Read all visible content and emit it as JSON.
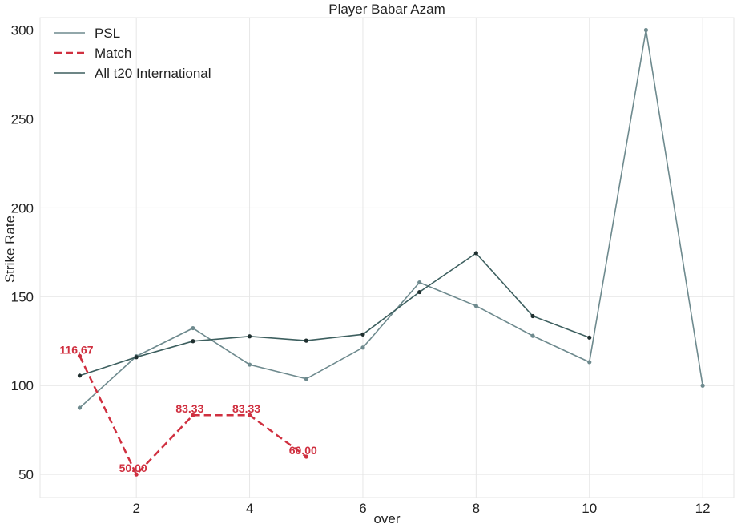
{
  "chart_data": {
    "type": "line",
    "title": "Player Babar Azam",
    "xlabel": "over",
    "ylabel": "Strike Rate",
    "xlim": [
      0.3,
      12.55
    ],
    "ylim": [
      37,
      307
    ],
    "xticks": [
      2,
      4,
      6,
      8,
      10,
      12
    ],
    "yticks": [
      50,
      100,
      150,
      200,
      250,
      300
    ],
    "grid": true,
    "legend_position": "top-left",
    "series": [
      {
        "name": "PSL",
        "color": "#6e8a8e",
        "style": "solid",
        "x": [
          1,
          2,
          3,
          4,
          5,
          6,
          7,
          8,
          9,
          10,
          11,
          12
        ],
        "values": [
          87.5,
          116.5,
          132.3,
          111.8,
          103.8,
          121.4,
          158.0,
          144.8,
          128.0,
          113.2,
          300.0,
          100.0
        ]
      },
      {
        "name": "Match",
        "color": "#d03040",
        "style": "dashed",
        "x": [
          1,
          2,
          3,
          4,
          5
        ],
        "values": [
          116.67,
          50.0,
          83.33,
          83.33,
          60.0
        ],
        "labels": [
          "116.67",
          "50.00",
          "83.33",
          "83.33",
          "60.00"
        ]
      },
      {
        "name": "All t20 International",
        "color": "#3d5f5f",
        "style": "solid",
        "x": [
          1,
          2,
          3,
          4,
          5,
          6,
          7,
          8,
          9,
          10
        ],
        "values": [
          105.6,
          116.0,
          125.0,
          127.7,
          125.3,
          128.8,
          152.6,
          174.5,
          139.1,
          127.0
        ]
      }
    ]
  }
}
